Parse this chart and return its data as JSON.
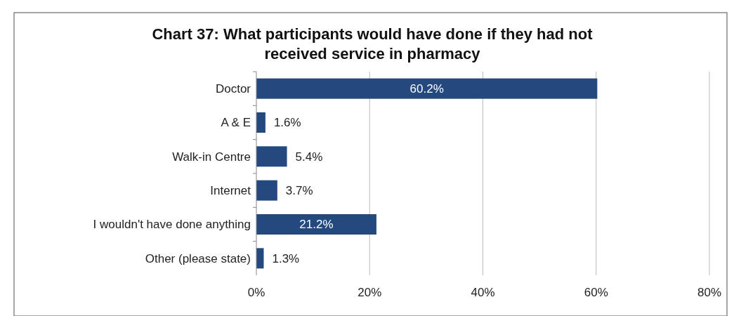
{
  "chart_data": {
    "type": "bar",
    "orientation": "horizontal",
    "title": "Chart 37: What participants would have done if they had not received service in pharmacy",
    "categories": [
      "Doctor",
      "A & E",
      "Walk-in Centre",
      "Internet",
      "I wouldn't have done anything",
      "Other (please state)"
    ],
    "values": [
      60.2,
      1.6,
      5.4,
      3.7,
      21.2,
      1.3
    ],
    "value_labels": [
      "60.2%",
      "1.6%",
      "5.4%",
      "3.7%",
      "21.2%",
      "1.3%"
    ],
    "color": "#24497f",
    "xlim": [
      0,
      80
    ],
    "xticks": [
      {
        "value": 0,
        "label": "0%"
      },
      {
        "value": 20,
        "label": "20%"
      },
      {
        "value": 40,
        "label": "40%"
      },
      {
        "value": 60,
        "label": "60%"
      },
      {
        "value": 80,
        "label": "80%"
      }
    ],
    "grid": "x"
  }
}
